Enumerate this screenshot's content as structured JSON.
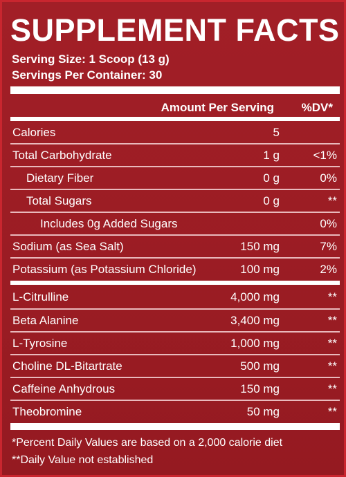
{
  "title": "SUPPLEMENT FACTS",
  "serving_size": "Serving Size: 1 Scoop (13 g)",
  "servings_per_container": "Servings Per Container: 30",
  "header": {
    "amount": "Amount Per Serving",
    "dv": "%DV*"
  },
  "rows": [
    {
      "name": "Calories",
      "amount": "5",
      "dv": ""
    },
    {
      "name": "Total Carbohydrate",
      "amount": "1 g",
      "dv": "<1%"
    },
    {
      "name": "Dietary Fiber",
      "amount": "0 g",
      "dv": "0%"
    },
    {
      "name": "Total Sugars",
      "amount": "0 g",
      "dv": "**"
    },
    {
      "name": "Includes 0g Added Sugars",
      "amount": "",
      "dv": "0%"
    },
    {
      "name": "Sodium (as Sea Salt)",
      "amount": "150 mg",
      "dv": "7%"
    },
    {
      "name": "Potassium (as Potassium Chloride)",
      "amount": "100 mg",
      "dv": "2%"
    },
    {
      "name": "L-Citrulline",
      "amount": "4,000 mg",
      "dv": "**"
    },
    {
      "name": "Beta Alanine",
      "amount": "3,400 mg",
      "dv": "**"
    },
    {
      "name": "L-Tyrosine",
      "amount": "1,000 mg",
      "dv": "**"
    },
    {
      "name": "Choline DL-Bitartrate",
      "amount": "500 mg",
      "dv": "**"
    },
    {
      "name": "Caffeine Anhydrous",
      "amount": "150 mg",
      "dv": "**"
    },
    {
      "name": "Theobromine",
      "amount": "50 mg",
      "dv": "**"
    }
  ],
  "footnotes": [
    "*Percent Daily Values are based on a 2,000 calorie diet",
    "**Daily Value not established"
  ],
  "colors": {
    "background": "#9b1c23",
    "text": "#ffffff"
  }
}
